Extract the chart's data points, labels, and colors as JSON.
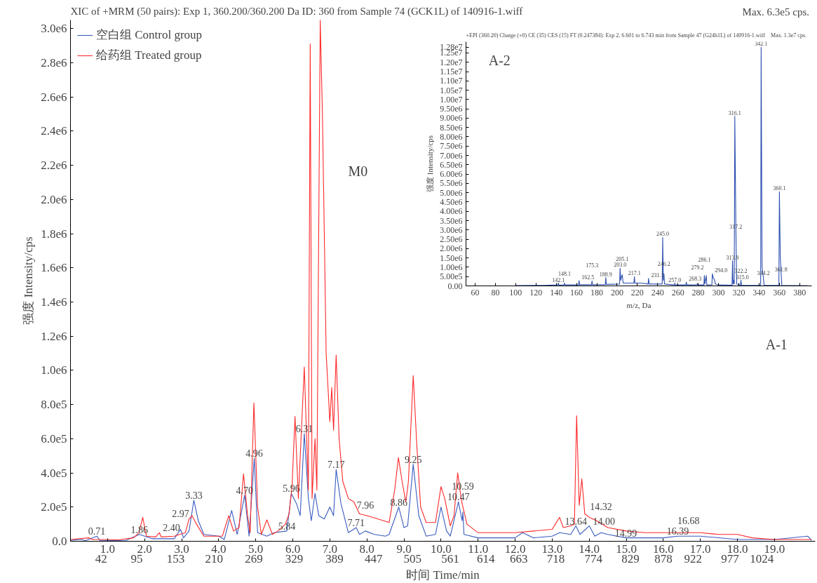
{
  "chart_data": [
    {
      "type": "line",
      "title": "XIC of +MRM (50 pairs): Exp 1, 360.200/360.200 Da ID: 360 from Sample 74 (GCK1L) of 140916-1.wiff",
      "subtitle": "Max. 6.3e5 cps.",
      "xlabel": "时间 Time/min",
      "ylabel": "强度 Intensity/cps",
      "xlim": [
        0,
        20.1
      ],
      "ylim": [
        0,
        3050000.0
      ],
      "xticks": [
        {
          "value": 1.0,
          "label": "1.0"
        },
        {
          "value": 2.0,
          "label": "2.0"
        },
        {
          "value": 3.0,
          "label": "3.0"
        },
        {
          "value": 4.0,
          "label": "4.0"
        },
        {
          "value": 5.0,
          "label": "5.0"
        },
        {
          "value": 6.0,
          "label": "6.0"
        },
        {
          "value": 7.0,
          "label": "7.0"
        },
        {
          "value": 8.0,
          "label": "8.0"
        },
        {
          "value": 9.0,
          "label": "9.0"
        },
        {
          "value": 10.0,
          "label": "10.0"
        },
        {
          "value": 11.0,
          "label": "11.0"
        },
        {
          "value": 12.0,
          "label": "12.0"
        },
        {
          "value": 13.0,
          "label": "13.0"
        },
        {
          "value": 14.0,
          "label": "14.0"
        },
        {
          "value": 15.0,
          "label": "15.0"
        },
        {
          "value": 16.0,
          "label": "16.0"
        },
        {
          "value": 17.0,
          "label": "17.0"
        },
        {
          "value": 18.0,
          "label": "18.0"
        },
        {
          "value": 19.0,
          "label": "19.0"
        }
      ],
      "x2lim": [
        -3.5,
        1103.6
      ],
      "x2ticks": [
        42,
        95,
        153,
        210,
        269,
        329,
        389,
        447,
        505,
        561,
        614,
        663,
        718,
        774,
        829,
        878,
        922,
        977,
        1024
      ],
      "yticks": [
        {
          "value": 0,
          "label": "0.0"
        },
        {
          "value": 200000,
          "label": "2.0e5"
        },
        {
          "value": 400000,
          "label": "4.0e5"
        },
        {
          "value": 600000,
          "label": "6.0e5"
        },
        {
          "value": 800000,
          "label": "8.0e5"
        },
        {
          "value": 1000000,
          "label": "1.0e6"
        },
        {
          "value": 1200000,
          "label": "1.2e6"
        },
        {
          "value": 1400000,
          "label": "1.4e6"
        },
        {
          "value": 1600000,
          "label": "1.6e6"
        },
        {
          "value": 1800000,
          "label": "1.8e6"
        },
        {
          "value": 2000000,
          "label": "2.0e6"
        },
        {
          "value": 2200000,
          "label": "2.2e6"
        },
        {
          "value": 2400000,
          "label": "2.4e6"
        },
        {
          "value": 2600000,
          "label": "2.6e6"
        },
        {
          "value": 2800000,
          "label": "2.8e6"
        },
        {
          "value": 3000000,
          "label": "3.0e6"
        }
      ],
      "grid": false,
      "legend": "top left",
      "series": [
        {
          "name": "空白组 Control group",
          "color": "#3a5cc0",
          "x": [
            0.0,
            0.3,
            0.4,
            0.71,
            0.8,
            1.5,
            1.86,
            2.2,
            2.8,
            2.97,
            3.05,
            3.2,
            3.33,
            3.45,
            3.6,
            4.0,
            4.15,
            4.35,
            4.5,
            4.7,
            4.82,
            4.96,
            5.05,
            5.3,
            5.5,
            5.84,
            5.96,
            6.1,
            6.2,
            6.31,
            6.42,
            6.5,
            6.6,
            6.7,
            6.85,
            7.0,
            7.1,
            7.17,
            7.3,
            7.5,
            7.71,
            7.8,
            7.96,
            8.2,
            8.5,
            8.6,
            8.86,
            9.0,
            9.1,
            9.25,
            9.4,
            9.6,
            9.85,
            10.0,
            10.15,
            10.25,
            10.47,
            10.57,
            10.59,
            10.62,
            11.0,
            12.0,
            12.2,
            12.5,
            13.0,
            13.2,
            13.5,
            13.64,
            13.75,
            14.0,
            14.15,
            14.32,
            14.5,
            14.99,
            16.0,
            16.39,
            16.68,
            17.0,
            18.0,
            19.0,
            19.9,
            20.0
          ],
          "values": [
            5000,
            10000,
            3000,
            30000,
            3000,
            5000,
            40000,
            15000,
            15000,
            70000,
            20000,
            60000,
            240000,
            120000,
            40000,
            30000,
            10000,
            180000,
            40000,
            270000,
            30000,
            486000,
            50000,
            30000,
            50000,
            60000,
            280000,
            220000,
            150000,
            630000,
            250000,
            120000,
            280000,
            150000,
            130000,
            200000,
            150000,
            420000,
            220000,
            50000,
            80000,
            40000,
            60000,
            40000,
            30000,
            40000,
            200000,
            80000,
            90000,
            450000,
            150000,
            30000,
            40000,
            200000,
            60000,
            30000,
            230000,
            120000,
            170000,
            40000,
            20000,
            20000,
            50000,
            20000,
            30000,
            50000,
            40000,
            90000,
            40000,
            90000,
            30000,
            50000,
            40000,
            20000,
            20000,
            30000,
            30000,
            30000,
            10000,
            10000,
            30000,
            5000
          ]
        },
        {
          "name": "给药组 Treated group",
          "color": "#ff2a2a",
          "x": [
            0.0,
            0.5,
            0.6,
            0.9,
            1.3,
            1.7,
            1.85,
            1.95,
            2.05,
            2.3,
            2.4,
            2.45,
            2.8,
            3.1,
            3.2,
            3.28,
            3.4,
            3.6,
            3.9,
            4.1,
            4.27,
            4.4,
            4.55,
            4.67,
            4.78,
            4.85,
            4.95,
            5.05,
            5.15,
            5.3,
            5.45,
            5.6,
            5.8,
            5.9,
            5.98,
            6.06,
            6.15,
            6.31,
            6.42,
            6.47,
            6.52,
            6.6,
            6.65,
            6.74,
            6.8,
            6.9,
            7.0,
            7.05,
            7.1,
            7.17,
            7.25,
            7.35,
            7.5,
            7.65,
            7.8,
            8.0,
            8.3,
            8.6,
            8.75,
            8.85,
            8.95,
            9.05,
            9.12,
            9.25,
            9.35,
            9.45,
            9.6,
            9.85,
            10.0,
            10.1,
            10.25,
            10.35,
            10.45,
            10.55,
            10.7,
            11.0,
            11.5,
            12.0,
            12.5,
            13.0,
            13.2,
            13.3,
            13.5,
            13.6,
            13.66,
            13.73,
            13.8,
            13.88,
            14.0,
            14.2,
            14.5,
            15.0,
            15.5,
            16.0,
            16.5,
            17.0,
            17.5,
            18.0,
            18.4,
            19.0,
            20.0
          ],
          "values": [
            10000,
            20000,
            10000,
            10000,
            8000,
            20000,
            50000,
            140000,
            30000,
            25000,
            50000,
            25000,
            30000,
            50000,
            130000,
            150000,
            100000,
            30000,
            30000,
            30000,
            150000,
            60000,
            80000,
            395000,
            150000,
            50000,
            810000,
            200000,
            40000,
            125000,
            40000,
            60000,
            100000,
            160000,
            320000,
            730000,
            250000,
            1020000,
            300000,
            2910000,
            250000,
            600000,
            300000,
            3050000,
            2500000,
            1100000,
            700000,
            900000,
            650000,
            1090000,
            600000,
            350000,
            250000,
            230000,
            160000,
            150000,
            130000,
            110000,
            300000,
            490000,
            350000,
            230000,
            350000,
            970000,
            550000,
            200000,
            110000,
            110000,
            320000,
            250000,
            90000,
            150000,
            400000,
            240000,
            100000,
            50000,
            50000,
            50000,
            60000,
            70000,
            140000,
            80000,
            90000,
            100000,
            735000,
            210000,
            365000,
            160000,
            140000,
            120000,
            80000,
            60000,
            50000,
            50000,
            50000,
            50000,
            40000,
            40000,
            20000,
            10000,
            10000
          ]
        }
      ],
      "annotations": [
        {
          "text": "0.71",
          "x": 0.71,
          "y": 30000
        },
        {
          "text": "1.86",
          "x": 1.86,
          "y": 40000
        },
        {
          "text": "2.40",
          "x": 2.4,
          "y": 50000
        },
        {
          "text": "2.97",
          "x": 2.97,
          "y": 70000
        },
        {
          "text": "3.33",
          "x": 3.33,
          "y": 240000
        },
        {
          "text": "4.70",
          "x": 4.7,
          "y": 270000
        },
        {
          "text": "4.96",
          "x": 4.96,
          "y": 486000
        },
        {
          "text": "5.84",
          "x": 5.84,
          "y": 60000
        },
        {
          "text": "5.96",
          "x": 5.96,
          "y": 280000
        },
        {
          "text": "6.31",
          "x": 6.31,
          "y": 630000
        },
        {
          "text": "7.17",
          "x": 7.17,
          "y": 420000
        },
        {
          "text": "7.71",
          "x": 7.71,
          "y": 80000
        },
        {
          "text": "7.96",
          "x": 7.96,
          "y": 60000
        },
        {
          "text": "8.86",
          "x": 8.86,
          "y": 200000
        },
        {
          "text": "9.25",
          "x": 9.25,
          "y": 450000
        },
        {
          "text": "10.47",
          "x": 10.47,
          "y": 230000
        },
        {
          "text": "10.59",
          "x": 10.59,
          "y": 170000
        },
        {
          "text": "13.64",
          "x": 13.64,
          "y": 90000
        },
        {
          "text": "14.00",
          "x": 14.0,
          "y": 90000
        },
        {
          "text": "14.32",
          "x": 14.32,
          "y": 50000
        },
        {
          "text": "14.99",
          "x": 14.99,
          "y": 20000
        },
        {
          "text": "16.39",
          "x": 16.39,
          "y": 30000
        },
        {
          "text": "16.68",
          "x": 16.68,
          "y": 30000
        },
        "M0",
        "A-1"
      ]
    },
    {
      "type": "line",
      "title": "+EPI (360.20) Charge (+0) CE (35) CES (15) FT (0.247384): Exp 2, 6.601 to 6.743 min from Sample 47 (G24h1L) of 140916-1.wiff",
      "subtitle": "Max. 1.3e7 cps.",
      "xlabel": "m/z, Da",
      "ylabel": "强度 Intensity/cps",
      "xlim": [
        51,
        392
      ],
      "ylim": [
        0,
        13100000.0
      ],
      "xticks": [
        60,
        80,
        100,
        120,
        140,
        160,
        180,
        200,
        220,
        240,
        260,
        280,
        300,
        320,
        340,
        360,
        380
      ],
      "yticks": [
        {
          "value": 0,
          "label": "0.00"
        },
        {
          "value": 500000,
          "label": "5.00e5"
        },
        {
          "value": 1000000,
          "label": "1.00e6"
        },
        {
          "value": 1500000,
          "label": "1.50e6"
        },
        {
          "value": 2000000,
          "label": "2.00e6"
        },
        {
          "value": 2500000,
          "label": "2.50e6"
        },
        {
          "value": 3000000,
          "label": "3.00e6"
        },
        {
          "value": 3500000,
          "label": "3.50e6"
        },
        {
          "value": 4000000,
          "label": "4.00e6"
        },
        {
          "value": 4500000,
          "label": "4.50e6"
        },
        {
          "value": 5000000,
          "label": "5.00e6"
        },
        {
          "value": 5500000,
          "label": "5.50e6"
        },
        {
          "value": 6000000,
          "label": "6.00e6"
        },
        {
          "value": 6500000,
          "label": "6.50e6"
        },
        {
          "value": 7000000,
          "label": "7.00e6"
        },
        {
          "value": 7500000,
          "label": "7.50e6"
        },
        {
          "value": 8000000,
          "label": "8.00e6"
        },
        {
          "value": 8500000,
          "label": "8.50e6"
        },
        {
          "value": 9000000,
          "label": "9.00e6"
        },
        {
          "value": 9500000,
          "label": "9.50e6"
        },
        {
          "value": 10000000,
          "label": "1.00e7"
        },
        {
          "value": 10500000,
          "label": "1.05e7"
        },
        {
          "value": 11000000,
          "label": "1.10e7"
        },
        {
          "value": 11500000,
          "label": "1.15e7"
        },
        {
          "value": 12000000,
          "label": "1.20e7"
        },
        {
          "value": 12500000,
          "label": "1.25e7"
        },
        {
          "value": 12800000,
          "label": "1.28e7"
        }
      ],
      "grid": false,
      "series": [
        {
          "color": "#2d50b0",
          "x": [
            100,
            128,
            141.6,
            142.1,
            142.6,
            147.6,
            148.1,
            148.6,
            162,
            162.5,
            163,
            174.8,
            175.3,
            175.8,
            188.4,
            188.9,
            189.4,
            202.5,
            203.0,
            203.6,
            204.5,
            205.1,
            206,
            212,
            216.6,
            217.1,
            217.6,
            224,
            230.6,
            231.1,
            231.6,
            244.5,
            245.0,
            245.6,
            246.2,
            246.8,
            256.5,
            257.0,
            257.5,
            267.8,
            268.3,
            268.8,
            278.7,
            279.2,
            279.7,
            285.6,
            286.1,
            286.6,
            288,
            288.5,
            293.5,
            294.0,
            295,
            296,
            297,
            300,
            313.4,
            313.9,
            314.4,
            315.0,
            315.6,
            316.1,
            317.2,
            318,
            321.7,
            322.2,
            322.7,
            341.6,
            342.1,
            343,
            344.2,
            345,
            359.6,
            360.1,
            361,
            361.8,
            362.5,
            388
          ],
          "values": [
            20000,
            30000,
            50000,
            150000,
            40000,
            50000,
            150000,
            50000,
            50000,
            280000,
            60000,
            60000,
            260000,
            60000,
            70000,
            450000,
            80000,
            100000,
            950000,
            300000,
            500000,
            600000,
            150000,
            150000,
            150000,
            500000,
            150000,
            150000,
            100000,
            400000,
            100000,
            100000,
            2600000,
            300000,
            650000,
            100000,
            50000,
            150000,
            50000,
            50000,
            200000,
            50000,
            50000,
            120000,
            50000,
            50000,
            550000,
            100000,
            550000,
            50000,
            60000,
            650000,
            400000,
            350000,
            100000,
            50000,
            40000,
            1350000,
            100000,
            300000,
            100000,
            9100000,
            3000000,
            100000,
            30000,
            300000,
            30000,
            30000,
            12800000,
            1000000,
            500000,
            30000,
            30000,
            5050000,
            1500000,
            700000,
            30000,
            10000
          ]
        }
      ],
      "annotations": [
        "A-2",
        {
          "text": "142.1",
          "x": 142.1,
          "y": 150000
        },
        {
          "text": "148.1",
          "x": 148.1,
          "y": 150000
        },
        {
          "text": "162.5",
          "x": 162.5,
          "y": 280000
        },
        {
          "text": "175.3",
          "x": 175.3,
          "y": 260000
        },
        {
          "text": "188.9",
          "x": 188.9,
          "y": 450000
        },
        {
          "text": "203.0",
          "x": 203.0,
          "y": 950000
        },
        {
          "text": "205.1",
          "x": 205.1,
          "y": 600000
        },
        {
          "text": "217.1",
          "x": 217.1,
          "y": 500000
        },
        {
          "text": "231.1",
          "x": 231.1,
          "y": 400000
        },
        {
          "text": "245.0",
          "x": 245.0,
          "y": 2600000
        },
        {
          "text": "246.2",
          "x": 246.2,
          "y": 650000
        },
        {
          "text": "257.0",
          "x": 257.0,
          "y": 150000
        },
        {
          "text": "268.3",
          "x": 268.3,
          "y": 200000
        },
        {
          "text": "279.2",
          "x": 279.2,
          "y": 120000
        },
        {
          "text": "286.1",
          "x": 286.1,
          "y": 550000
        },
        {
          "text": "294.0",
          "x": 294.0,
          "y": 650000
        },
        {
          "text": "313.9",
          "x": 313.9,
          "y": 1350000
        },
        {
          "text": "315.0",
          "x": 315.0,
          "y": 300000
        },
        {
          "text": "316.1",
          "x": 316.1,
          "y": 9100000
        },
        {
          "text": "317.2",
          "x": 317.2,
          "y": 3000000
        },
        {
          "text": "322.2",
          "x": 322.2,
          "y": 300000
        },
        {
          "text": "342.1",
          "x": 342.1,
          "y": 12800000
        },
        {
          "text": "344.2",
          "x": 344.2,
          "y": 500000
        },
        {
          "text": "360.1",
          "x": 360.1,
          "y": 5050000
        },
        {
          "text": "361.8",
          "x": 361.8,
          "y": 700000
        }
      ]
    }
  ]
}
